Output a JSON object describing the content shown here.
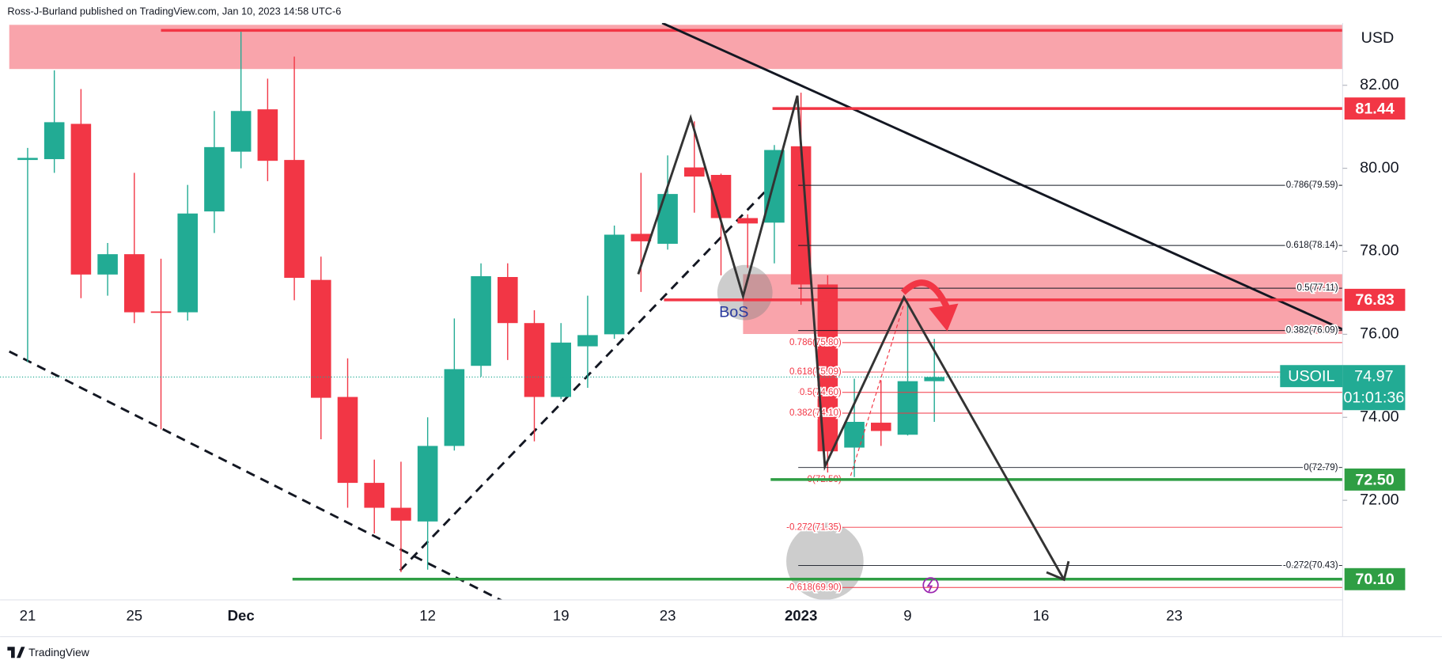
{
  "header": "Ross-J-Burland published on TradingView.com, Jan 10, 2023 14:58 UTC-6",
  "footer": "TradingView",
  "chart_data": {
    "type": "candlestick",
    "currency": "USD",
    "up_color": "#22ab94",
    "down_color": "#f23645",
    "categories": [
      "21",
      null,
      null,
      null,
      "25",
      null,
      null,
      null,
      "Dec",
      null,
      null,
      null,
      null,
      null,
      null,
      "12",
      null,
      null,
      null,
      null,
      "19",
      null,
      null,
      null,
      "23",
      null,
      null,
      null,
      null,
      "2023",
      null,
      null,
      null,
      "9",
      null,
      null,
      null,
      null,
      "16",
      null,
      null,
      null,
      null,
      "23"
    ],
    "open": [
      80.2,
      80.22,
      81.07,
      77.44,
      77.93,
      76.55,
      76.53,
      78.96,
      80.4,
      81.42,
      80.2,
      77.31,
      74.49,
      72.42,
      71.82,
      71.49,
      73.31,
      75.24,
      77.38,
      76.27,
      74.49,
      75.71,
      76.0,
      78.42,
      78.18,
      80.02,
      79.84,
      78.8,
      78.69,
      80.53,
      77.2,
      73.27,
      73.87,
      73.58,
      74.87,
      null,
      null,
      null,
      null,
      null,
      null,
      null,
      null,
      null
    ],
    "high": [
      80.49,
      82.36,
      81.91,
      78.2,
      79.89,
      77.82,
      79.6,
      81.38,
      83.29,
      82.16,
      82.69,
      77.87,
      75.42,
      72.98,
      72.93,
      74.0,
      76.38,
      77.71,
      77.71,
      76.58,
      76.27,
      76.93,
      78.62,
      79.89,
      80.31,
      81.13,
      79.87,
      78.89,
      80.56,
      81.82,
      77.42,
      74.93,
      74.89,
      76.87,
      75.89,
      null,
      null,
      null,
      null,
      null,
      null,
      null,
      null,
      null
    ],
    "low": [
      75.33,
      79.89,
      76.87,
      76.93,
      76.27,
      73.71,
      76.33,
      78.44,
      80.0,
      79.69,
      76.82,
      73.47,
      71.82,
      71.2,
      70.27,
      70.33,
      73.2,
      74.98,
      75.38,
      73.42,
      74.44,
      74.71,
      75.89,
      77.02,
      78.04,
      78.93,
      77.42,
      77.6,
      77.71,
      76.71,
      72.67,
      72.56,
      73.31,
      73.56,
      73.89,
      null,
      null,
      null,
      null,
      null,
      null,
      null,
      null,
      null
    ],
    "close": [
      80.25,
      81.11,
      77.44,
      77.93,
      76.53,
      76.53,
      78.91,
      80.51,
      81.38,
      80.18,
      77.36,
      74.47,
      72.42,
      71.82,
      71.51,
      73.31,
      75.16,
      77.4,
      76.27,
      74.49,
      75.8,
      75.98,
      78.4,
      78.24,
      79.38,
      79.8,
      78.8,
      78.67,
      80.44,
      77.2,
      73.18,
      73.89,
      73.67,
      74.87,
      74.97,
      null,
      null,
      null,
      null,
      null,
      null,
      null,
      null,
      null
    ],
    "ylim": [
      69.6,
      83.5
    ],
    "yticks": [
      {
        "value": 72,
        "label": "72.00"
      },
      {
        "value": 74,
        "label": "74.00"
      },
      {
        "value": 76,
        "label": "76.00"
      },
      {
        "value": 78,
        "label": "78.00"
      },
      {
        "value": 80,
        "label": "80.00"
      },
      {
        "value": 82,
        "label": "82.00"
      }
    ],
    "levels": [
      {
        "value": 81.44,
        "label": "81.44",
        "color": "#f23645"
      },
      {
        "value": 76.83,
        "label": "76.83",
        "color": "#f23645"
      },
      {
        "value": 72.5,
        "label": "72.50",
        "color": "#2f9e44"
      },
      {
        "value": 70.1,
        "label": "70.10",
        "color": "#2f9e44"
      }
    ],
    "last_price": {
      "symbol": "USOIL",
      "value": 74.97,
      "label": "74.97",
      "countdown": "01:01:36",
      "color": "#22ab94"
    },
    "fibs": [
      {
        "color": "#131722",
        "levels": [
          {
            "value": 79.59,
            "label": "0.786(79.59)"
          },
          {
            "value": 78.14,
            "label": "0.618(78.14)"
          },
          {
            "value": 77.11,
            "label": "0.5(77.11)"
          },
          {
            "value": 76.09,
            "label": "0.382(76.09)"
          },
          {
            "value": 72.79,
            "label": "0(72.79)"
          },
          {
            "value": 70.43,
            "label": "-0.272(70.43)"
          }
        ]
      },
      {
        "color": "#f23645",
        "levels": [
          {
            "value": 75.8,
            "label": "0.786(75.80)"
          },
          {
            "value": 75.09,
            "label": "0.618(75.09)"
          },
          {
            "value": 74.6,
            "label": "0.5(74.60)"
          },
          {
            "value": 74.1,
            "label": "0.382(74.10)"
          },
          {
            "value": 72.5,
            "label": "0(72.50)"
          },
          {
            "value": 71.35,
            "label": "-0.272(71.35)"
          },
          {
            "value": 69.9,
            "label": "-0.618(69.90)"
          }
        ]
      }
    ],
    "annotation": "BoS"
  }
}
